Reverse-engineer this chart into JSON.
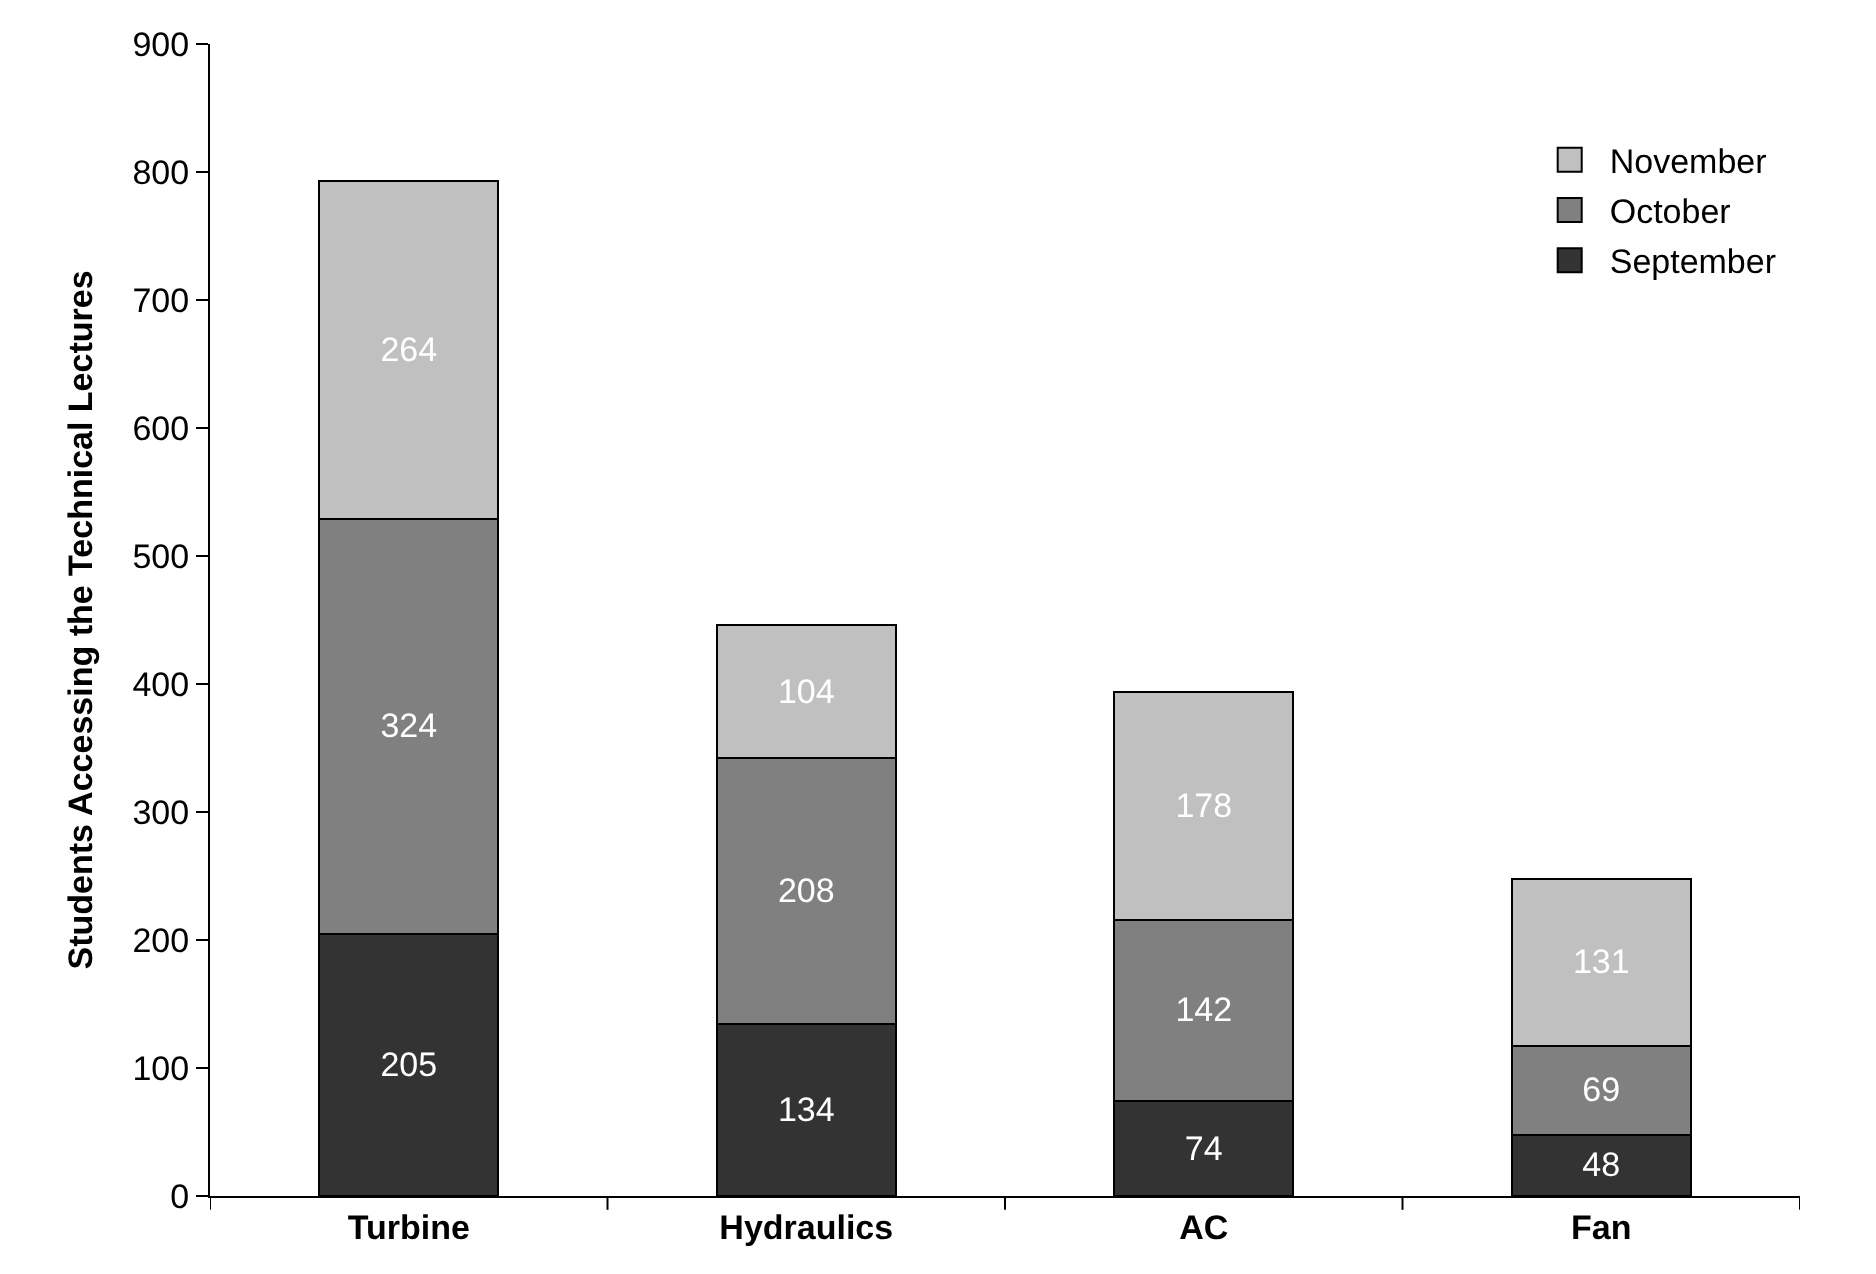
{
  "chart_data": {
    "type": "bar",
    "stacked": true,
    "ylabel": "Students Accessing the Technical Lectures",
    "categories": [
      "Turbine",
      "Hydraulics",
      "AC",
      "Fan"
    ],
    "series": [
      {
        "name": "September",
        "color": "#333333",
        "values": [
          205,
          134,
          74,
          48
        ]
      },
      {
        "name": "October",
        "color": "#808080",
        "values": [
          324,
          208,
          142,
          69
        ]
      },
      {
        "name": "November",
        "color": "#c0c0c0",
        "values": [
          264,
          104,
          178,
          131
        ]
      }
    ],
    "ylim": [
      0,
      900
    ],
    "yticks": [
      0,
      100,
      200,
      300,
      400,
      500,
      600,
      700,
      800,
      900
    ],
    "data_labels": true,
    "legend": "top right",
    "grid": false
  }
}
